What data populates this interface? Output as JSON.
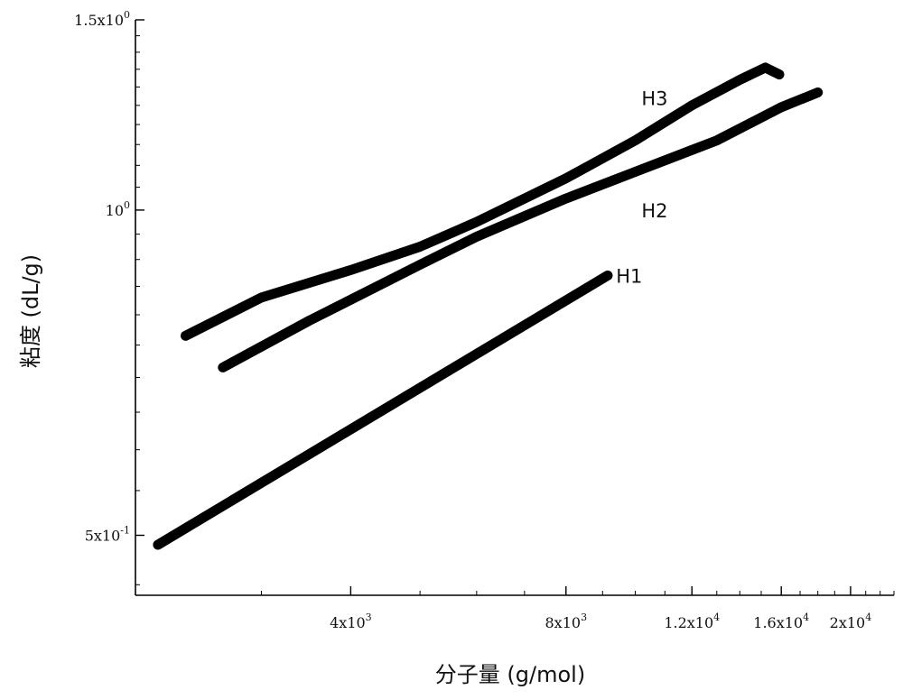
{
  "chart_data": {
    "type": "line",
    "xscale": "log",
    "yscale": "log",
    "xlim": [
      2000,
      23000
    ],
    "ylim": [
      0.44,
      1.5
    ],
    "xlabel": "分子量 (g/mol)",
    "ylabel": "粘度 (dL/g)",
    "xticks": [
      {
        "value": 4000,
        "mant": "4x10",
        "exp": "3"
      },
      {
        "value": 8000,
        "mant": "8x10",
        "exp": "3"
      },
      {
        "value": 12000,
        "mant": "1.2x10",
        "exp": "4"
      },
      {
        "value": 16000,
        "mant": "1.6x10",
        "exp": "4"
      },
      {
        "value": 20000,
        "mant": "2x10",
        "exp": "4"
      }
    ],
    "yticks": [
      {
        "value": 0.5,
        "mant": "5x10",
        "exp": "-1"
      },
      {
        "value": 1.0,
        "mant": "10",
        "exp": "0"
      },
      {
        "value": 1.5,
        "mant": "1.5x10",
        "exp": "0"
      }
    ],
    "series": [
      {
        "name": "H1",
        "x": [
          2150,
          9150
        ],
        "y": [
          0.49,
          0.87
        ],
        "label_at": [
          9400,
          0.87
        ]
      },
      {
        "name": "H2",
        "x": [
          2650,
          3500,
          5000,
          6000,
          8000,
          10000,
          13000,
          16000,
          18000
        ],
        "y": [
          0.715,
          0.79,
          0.89,
          0.945,
          1.025,
          1.085,
          1.16,
          1.245,
          1.285
        ],
        "label_at": [
          10200,
          1.0
        ]
      },
      {
        "name": "H3",
        "x": [
          2350,
          3000,
          4000,
          5000,
          6000,
          8000,
          10000,
          12000,
          14000,
          15200,
          15900
        ],
        "y": [
          0.765,
          0.83,
          0.88,
          0.925,
          0.975,
          1.07,
          1.16,
          1.25,
          1.32,
          1.355,
          1.335
        ],
        "label_at": [
          10200,
          1.27
        ]
      }
    ]
  }
}
